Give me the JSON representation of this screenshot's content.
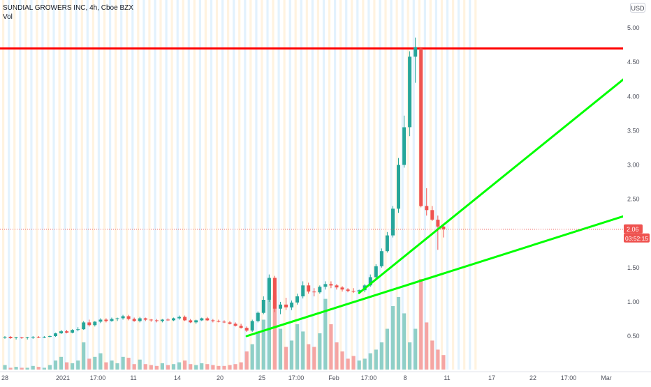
{
  "legend": {
    "title": "SUNDIAL GROWERS INC, 4h, Cboe BZX",
    "volume_label": "Vol"
  },
  "currency_button": "USD",
  "price_axis": {
    "ticks": [
      "5.00",
      "4.50",
      "4.00",
      "3.50",
      "3.00",
      "2.50",
      "2.00",
      "1.50",
      "1.00",
      "0.50"
    ],
    "last_price": "2.06",
    "countdown": "03:52:15"
  },
  "time_axis": {
    "ticks": [
      "28",
      "2021",
      "17:00",
      "11",
      "14",
      "20",
      "25",
      "17:00",
      "Feb",
      "17:00",
      "8",
      "11",
      "17",
      "22",
      "17:00",
      "Mar"
    ]
  },
  "colors": {
    "up": "#26a69a",
    "down": "#ef5350",
    "horizontal_line": "#ff0000",
    "trend_lines": "#00ff00",
    "session_stripe_pre": "#fff3e0",
    "session_stripe_post": "#e3f2fd"
  },
  "chart_data": {
    "type": "candlestick",
    "title": "SUNDIAL GROWERS INC, 4h, Cboe BZX",
    "ylim": [
      0.2,
      5.2
    ],
    "y_scale": "linear",
    "candles": [
      [
        0.48,
        0.5,
        0.46,
        0.49
      ],
      [
        0.49,
        0.5,
        0.46,
        0.47
      ],
      [
        0.47,
        0.49,
        0.45,
        0.48
      ],
      [
        0.48,
        0.49,
        0.46,
        0.47
      ],
      [
        0.47,
        0.49,
        0.45,
        0.48
      ],
      [
        0.48,
        0.5,
        0.46,
        0.49
      ],
      [
        0.49,
        0.5,
        0.47,
        0.48
      ],
      [
        0.48,
        0.5,
        0.47,
        0.49
      ],
      [
        0.49,
        0.51,
        0.48,
        0.5
      ],
      [
        0.5,
        0.55,
        0.49,
        0.54
      ],
      [
        0.54,
        0.59,
        0.53,
        0.57
      ],
      [
        0.57,
        0.59,
        0.54,
        0.55
      ],
      [
        0.55,
        0.6,
        0.54,
        0.59
      ],
      [
        0.59,
        0.63,
        0.57,
        0.6
      ],
      [
        0.6,
        0.72,
        0.59,
        0.7
      ],
      [
        0.7,
        0.74,
        0.64,
        0.66
      ],
      [
        0.66,
        0.72,
        0.64,
        0.71
      ],
      [
        0.71,
        0.76,
        0.69,
        0.74
      ],
      [
        0.74,
        0.76,
        0.7,
        0.72
      ],
      [
        0.72,
        0.77,
        0.71,
        0.75
      ],
      [
        0.75,
        0.77,
        0.72,
        0.76
      ],
      [
        0.76,
        0.81,
        0.74,
        0.79
      ],
      [
        0.79,
        0.81,
        0.73,
        0.75
      ],
      [
        0.75,
        0.77,
        0.71,
        0.72
      ],
      [
        0.72,
        0.78,
        0.7,
        0.76
      ],
      [
        0.76,
        0.77,
        0.72,
        0.74
      ],
      [
        0.74,
        0.75,
        0.71,
        0.73
      ],
      [
        0.73,
        0.75,
        0.7,
        0.72
      ],
      [
        0.72,
        0.75,
        0.7,
        0.74
      ],
      [
        0.74,
        0.76,
        0.72,
        0.73
      ],
      [
        0.73,
        0.77,
        0.72,
        0.76
      ],
      [
        0.76,
        0.8,
        0.74,
        0.78
      ],
      [
        0.78,
        0.8,
        0.72,
        0.73
      ],
      [
        0.73,
        0.75,
        0.69,
        0.7
      ],
      [
        0.7,
        0.74,
        0.68,
        0.73
      ],
      [
        0.73,
        0.77,
        0.72,
        0.76
      ],
      [
        0.76,
        0.78,
        0.72,
        0.73
      ],
      [
        0.73,
        0.75,
        0.7,
        0.72
      ],
      [
        0.72,
        0.74,
        0.7,
        0.71
      ],
      [
        0.71,
        0.73,
        0.69,
        0.7
      ],
      [
        0.7,
        0.72,
        0.67,
        0.68
      ],
      [
        0.68,
        0.7,
        0.64,
        0.65
      ],
      [
        0.65,
        0.68,
        0.61,
        0.62
      ],
      [
        0.62,
        0.64,
        0.56,
        0.58
      ],
      [
        0.58,
        0.74,
        0.56,
        0.72
      ],
      [
        0.72,
        0.86,
        0.7,
        0.84
      ],
      [
        0.84,
        1.08,
        0.82,
        1.03
      ],
      [
        1.03,
        1.4,
        1.0,
        1.35
      ],
      [
        1.35,
        1.38,
        0.85,
        0.9
      ],
      [
        0.9,
        1.0,
        0.82,
        0.96
      ],
      [
        0.96,
        1.06,
        0.88,
        0.92
      ],
      [
        0.92,
        1.02,
        0.88,
        0.99
      ],
      [
        0.99,
        1.12,
        0.96,
        1.08
      ],
      [
        1.08,
        1.3,
        1.05,
        1.24
      ],
      [
        1.24,
        1.28,
        1.12,
        1.15
      ],
      [
        1.15,
        1.2,
        1.08,
        1.14
      ],
      [
        1.14,
        1.24,
        1.12,
        1.22
      ],
      [
        1.22,
        1.3,
        1.18,
        1.26
      ],
      [
        1.26,
        1.3,
        1.2,
        1.24
      ],
      [
        1.24,
        1.26,
        1.18,
        1.21
      ],
      [
        1.21,
        1.23,
        1.15,
        1.18
      ],
      [
        1.18,
        1.2,
        1.14,
        1.16
      ],
      [
        1.16,
        1.2,
        1.13,
        1.15
      ],
      [
        1.15,
        1.18,
        1.12,
        1.17
      ],
      [
        1.17,
        1.26,
        1.14,
        1.24
      ],
      [
        1.24,
        1.4,
        1.22,
        1.36
      ],
      [
        1.36,
        1.55,
        1.34,
        1.52
      ],
      [
        1.52,
        1.78,
        1.5,
        1.74
      ],
      [
        1.74,
        2.02,
        1.72,
        1.97
      ],
      [
        1.97,
        2.4,
        1.94,
        2.36
      ],
      [
        2.36,
        3.1,
        2.3,
        3.0
      ],
      [
        3.0,
        3.72,
        2.96,
        3.55
      ],
      [
        3.55,
        4.66,
        3.42,
        4.58
      ],
      [
        4.58,
        4.86,
        4.2,
        4.72
      ],
      [
        4.7,
        4.72,
        2.38,
        2.4
      ],
      [
        2.4,
        2.66,
        2.26,
        2.34
      ],
      [
        2.34,
        2.4,
        2.18,
        2.2
      ],
      [
        2.2,
        2.26,
        1.76,
        2.1
      ],
      [
        2.1,
        2.14,
        1.94,
        2.06
      ]
    ],
    "volume": [
      0.05,
      0.02,
      0.03,
      0.02,
      0.02,
      0.04,
      0.03,
      0.02,
      0.05,
      0.1,
      0.14,
      0.08,
      0.07,
      0.1,
      0.3,
      0.12,
      0.14,
      0.18,
      0.08,
      0.1,
      0.07,
      0.14,
      0.13,
      0.06,
      0.11,
      0.06,
      0.05,
      0.04,
      0.07,
      0.05,
      0.06,
      0.08,
      0.1,
      0.06,
      0.05,
      0.07,
      0.06,
      0.05,
      0.04,
      0.04,
      0.05,
      0.06,
      0.08,
      0.2,
      0.28,
      0.42,
      0.55,
      1.0,
      0.82,
      0.45,
      0.25,
      0.32,
      0.5,
      0.42,
      0.28,
      0.25,
      0.4,
      0.78,
      0.5,
      0.3,
      0.2,
      0.12,
      0.15,
      0.1,
      0.12,
      0.18,
      0.22,
      0.3,
      0.45,
      0.7,
      0.8,
      0.62,
      0.3,
      0.45,
      1.0,
      0.52,
      0.32,
      0.22,
      0.16
    ],
    "horizontal_lines": [
      4.7
    ],
    "trend_lines": [
      {
        "from": [
          43,
          0.5
        ],
        "to": [
          110,
          2.25
        ]
      },
      {
        "from": [
          63,
          1.13
        ],
        "to": [
          110,
          4.25
        ]
      }
    ],
    "last_price": 2.06
  }
}
